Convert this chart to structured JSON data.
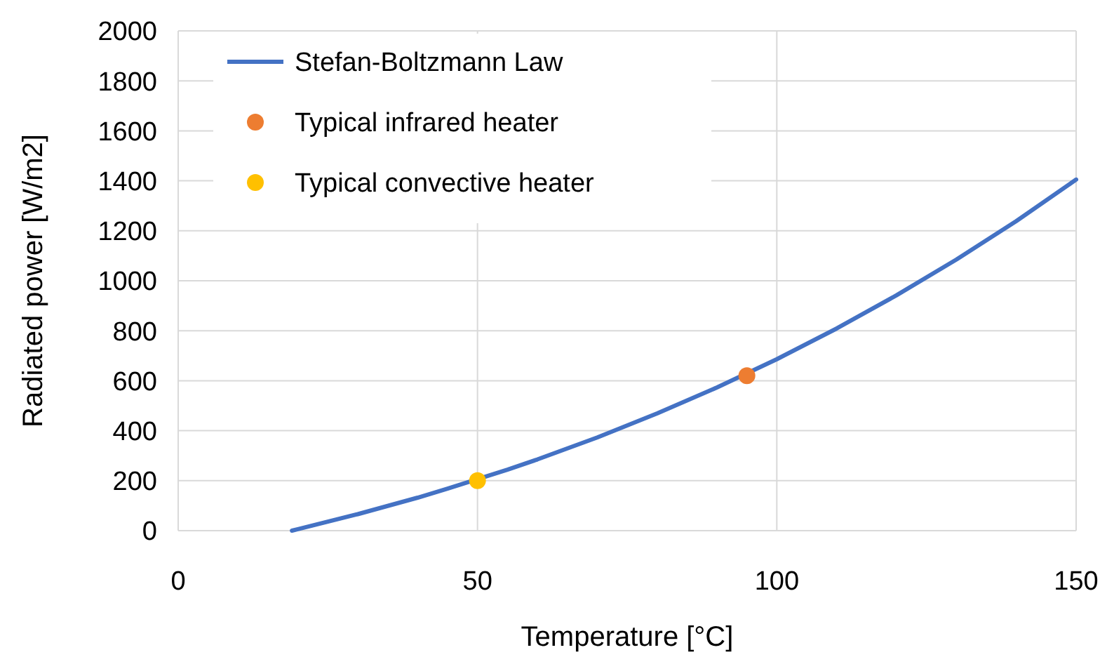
{
  "chart_data": {
    "type": "line",
    "xlabel": "Temperature [°C]",
    "ylabel": "Radiated power [W/m2]",
    "xlim": [
      0,
      150
    ],
    "xticks": [
      0,
      50,
      100,
      150
    ],
    "ylim": [
      0,
      2000
    ],
    "yticks": [
      0,
      200,
      400,
      600,
      800,
      1000,
      1200,
      1400,
      1600,
      1800,
      2000
    ],
    "grid": true,
    "legend": "top left",
    "line_style": "solid",
    "series": [
      {
        "name": "Stefan-Boltzmann Law",
        "color": "#4472c4",
        "marker": "none",
        "x": [
          19,
          20,
          30,
          40,
          45,
          55,
          60,
          70,
          80,
          90,
          100,
          110,
          120,
          130,
          140,
          150
        ],
        "values": [
          0,
          6,
          66,
          132,
          168,
          244,
          285,
          373,
          469,
          573,
          686,
          809,
          942,
          1085,
          1239,
          1405
        ]
      },
      {
        "name": "Typical infrared heater",
        "type": "scatter",
        "marker": "circle",
        "color": "#ed7d31",
        "x": [
          95
        ],
        "values": [
          620
        ]
      },
      {
        "name": "Typical convective heater",
        "type": "scatter",
        "marker": "circle",
        "color": "#ffc000",
        "x": [
          50
        ],
        "values": [
          200
        ]
      }
    ]
  }
}
